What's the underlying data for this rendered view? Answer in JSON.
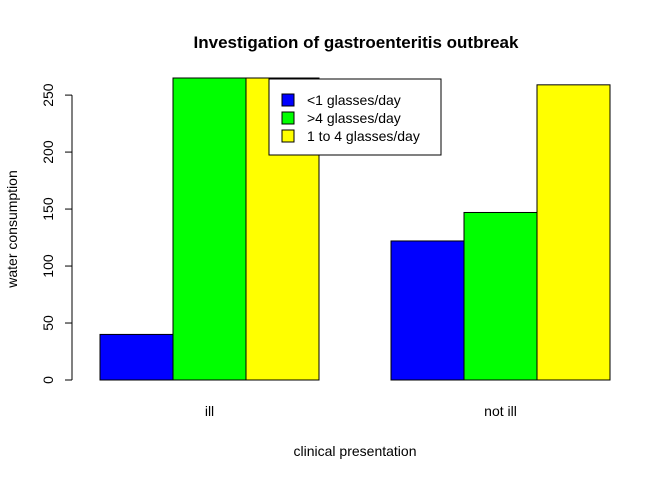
{
  "chart_data": {
    "type": "bar",
    "title": "Investigation of gastroenteritis outbreak",
    "xlabel": "clinical presentation",
    "ylabel": "water consumption",
    "categories": [
      "ill",
      "not ill"
    ],
    "series": [
      {
        "name": "<1 glasses/day",
        "color": "#0000ff",
        "values": [
          40,
          122
        ]
      },
      {
        "name": ">4 glasses/day",
        "color": "#00ff00",
        "values": [
          265,
          147
        ]
      },
      {
        "name": "1 to 4 glasses/day",
        "color": "#ffff00",
        "values": [
          265,
          259
        ]
      }
    ],
    "ylim": [
      0,
      265
    ],
    "yticks": [
      0,
      50,
      100,
      150,
      200,
      250
    ],
    "ytick_labels": [
      "0",
      "50",
      "100",
      "150",
      "200",
      "250"
    ],
    "grid": false,
    "legend_position": "top-center"
  }
}
